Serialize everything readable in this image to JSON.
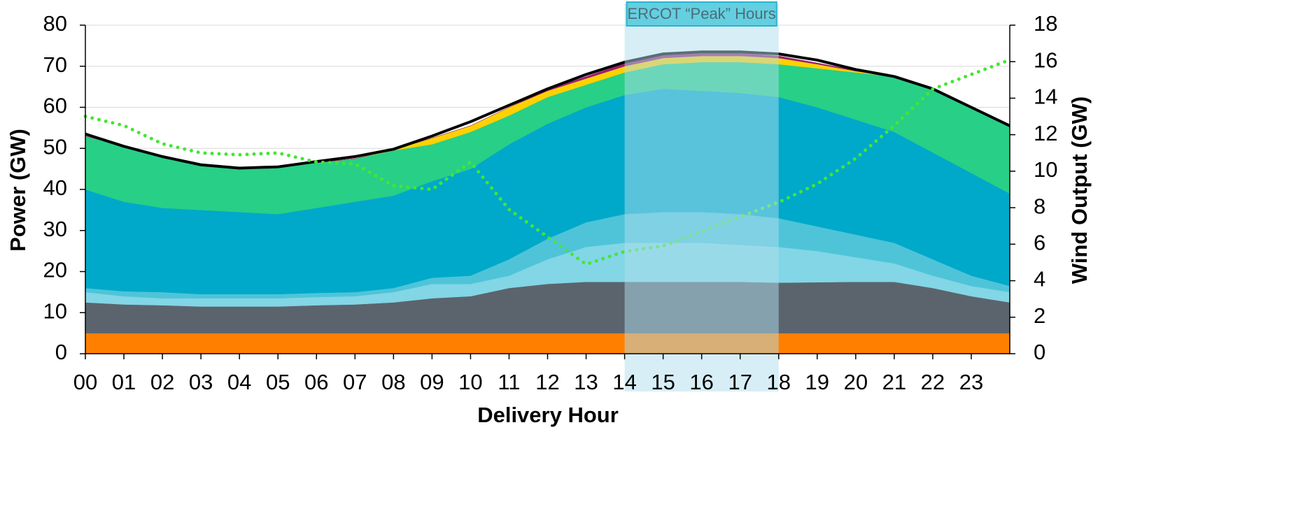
{
  "chart_data": {
    "type": "stacked_area",
    "x_label": "Delivery Hour",
    "y_label": "Power (GW)",
    "y2_label": "Wind Output (GW)",
    "x": [
      0,
      1,
      2,
      3,
      4,
      5,
      6,
      7,
      8,
      9,
      10,
      11,
      12,
      13,
      14,
      15,
      16,
      17,
      18,
      19,
      20,
      21,
      22,
      23,
      24
    ],
    "xlim": [
      0,
      24
    ],
    "xticks": [
      {
        "value": 0,
        "label": "00"
      },
      {
        "value": 1,
        "label": "01"
      },
      {
        "value": 2,
        "label": "02"
      },
      {
        "value": 3,
        "label": "03"
      },
      {
        "value": 4,
        "label": "04"
      },
      {
        "value": 5,
        "label": "05"
      },
      {
        "value": 6,
        "label": "06"
      },
      {
        "value": 7,
        "label": "07"
      },
      {
        "value": 8,
        "label": "08"
      },
      {
        "value": 9,
        "label": "09"
      },
      10,
      11,
      12,
      13,
      14,
      15,
      16,
      17,
      18,
      19,
      20,
      21,
      22,
      23
    ],
    "ylim": [
      0,
      80
    ],
    "yticks": [
      0,
      10,
      20,
      30,
      40,
      50,
      60,
      70,
      80
    ],
    "y2lim": [
      0,
      18
    ],
    "y2ticks": [
      0,
      2,
      4,
      6,
      8,
      10,
      12,
      14,
      16,
      18
    ],
    "grid": true,
    "series": [
      {
        "color": "#ff8000",
        "values": [
          5,
          5,
          5,
          5,
          5,
          5,
          5,
          5,
          5,
          5,
          5,
          5,
          5,
          5,
          5,
          5,
          5,
          5,
          5,
          5,
          5,
          5,
          5,
          5,
          5
        ]
      },
      {
        "color": "#5b646d",
        "values": [
          7.5,
          7,
          6.8,
          6.5,
          6.5,
          6.5,
          6.8,
          7,
          7.5,
          8.5,
          9,
          11,
          12,
          12.5,
          12.5,
          12.5,
          12.5,
          12.5,
          12.3,
          12.4,
          12.5,
          12.5,
          11,
          9,
          7.5
        ]
      },
      {
        "color": "#82d6e5",
        "values": [
          2.5,
          2,
          1.7,
          2,
          2,
          2,
          2,
          2,
          2.5,
          3.5,
          3,
          3,
          6,
          8.5,
          9.5,
          9.5,
          9.5,
          9,
          8.7,
          7.6,
          6,
          4.5,
          3,
          2.5,
          2.5
        ]
      },
      {
        "color": "#4fc4d9",
        "values": [
          1,
          1.2,
          1.5,
          1,
          1,
          1,
          1,
          1,
          1,
          1.5,
          2,
          4,
          5,
          6,
          7,
          7.5,
          7.5,
          7.5,
          7,
          6,
          5.5,
          5,
          4,
          2.5,
          1.5
        ]
      },
      {
        "color": "#00a9c9",
        "values": [
          24,
          21.8,
          20.5,
          20.5,
          20,
          19.5,
          20.7,
          22,
          22.5,
          23.5,
          26,
          28,
          28,
          28,
          29,
          30,
          29.5,
          29.5,
          29.5,
          29,
          28,
          27,
          26,
          25,
          22.5
        ]
      },
      {
        "color": "#28cf86",
        "values": [
          13,
          13.5,
          12.5,
          11,
          10.5,
          11.5,
          11,
          10.5,
          11,
          9,
          9,
          7,
          6.5,
          5.5,
          5.5,
          6,
          7,
          7.5,
          8,
          9.5,
          11.5,
          13.5,
          15.5,
          16,
          16.5
        ]
      },
      {
        "color": "#ffd100",
        "values": [
          0,
          0,
          0,
          0,
          0,
          0,
          0,
          0,
          0.2,
          1.5,
          1.5,
          2,
          1.5,
          1.5,
          1.5,
          1.5,
          1.5,
          1.5,
          1.5,
          1,
          0.3,
          0,
          0,
          0,
          0
        ]
      },
      {
        "color": "#9b1f72",
        "values": [
          0,
          0,
          0,
          0,
          0,
          0,
          0,
          0,
          0,
          0,
          0,
          0,
          0.3,
          0.5,
          0.7,
          0.7,
          0.7,
          0.7,
          0.5,
          0.3,
          0.2,
          0,
          0,
          0,
          0
        ]
      }
    ],
    "lines": [
      {
        "type": "line",
        "color": "#000000",
        "values": [
          53.5,
          50.5,
          48,
          46,
          45.2,
          45.5,
          46.8,
          48,
          49.8,
          53,
          56.5,
          60.5,
          64.5,
          68,
          71,
          73,
          73.5,
          73.5,
          73,
          71.5,
          69.2,
          67.5,
          64.5,
          60,
          55.5
        ]
      },
      {
        "type": "dotted_line",
        "axis": "y2",
        "color": "#44e634",
        "values": [
          13,
          12.5,
          11.5,
          11,
          10.9,
          11,
          10.5,
          10.4,
          9.2,
          9,
          10.5,
          7.9,
          6.4,
          4.9,
          5.6,
          5.9,
          6.7,
          7.5,
          8.3,
          9.3,
          10.7,
          12.5,
          14.5,
          15.3,
          16.1
        ]
      }
    ],
    "peak_band": {
      "label": "ERCOT “Peak” Hours",
      "x": [
        14,
        18
      ]
    }
  }
}
